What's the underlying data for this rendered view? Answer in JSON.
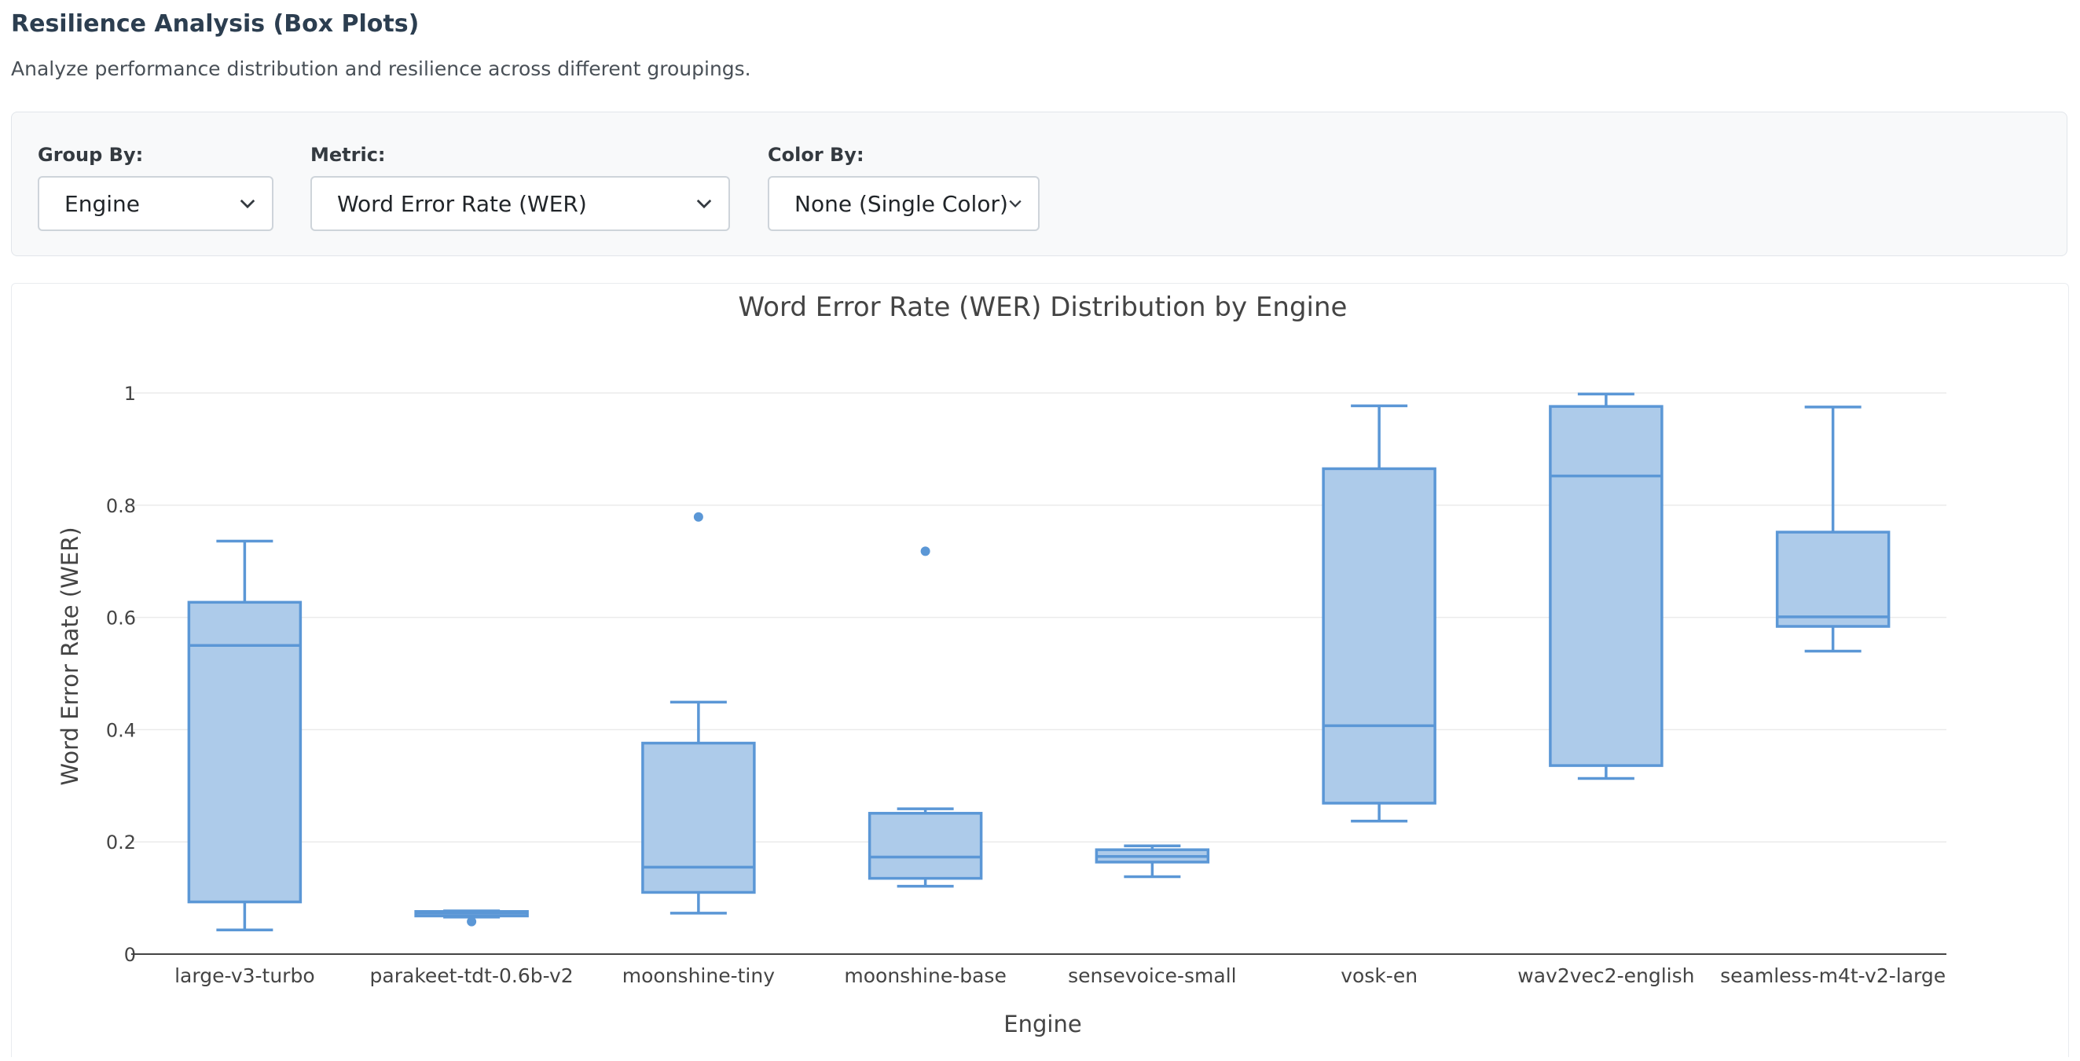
{
  "page": {
    "title": "Resilience Analysis (Box Plots)",
    "description": "Analyze performance distribution and resilience across different groupings."
  },
  "controls": {
    "group_by": {
      "label": "Group By:",
      "value": "Engine"
    },
    "metric": {
      "label": "Metric:",
      "value": "Word Error Rate (WER)"
    },
    "color_by": {
      "label": "Color By:",
      "value": "None (Single Color)"
    }
  },
  "colors": {
    "box_fill": "#adcbea",
    "box_stroke": "#5b97d6",
    "grid": "#ebebeb",
    "axis": "#444444",
    "text": "#444444"
  },
  "chart_data": {
    "type": "box",
    "title": "Word Error Rate (WER) Distribution by Engine",
    "xlabel": "Engine",
    "ylabel": "Word Error Rate (WER)",
    "ylim": [
      0,
      1.05
    ],
    "yticks": [
      0,
      0.2,
      0.4,
      0.6,
      0.8,
      1
    ],
    "ytick_labels": [
      "0",
      "0.2",
      "0.4",
      "0.6",
      "0.8",
      "1"
    ],
    "grid": true,
    "categories": [
      "large-v3-turbo",
      "parakeet-tdt-0.6b-v2",
      "moonshine-tiny",
      "moonshine-base",
      "sensevoice-small",
      "vosk-en",
      "wav2vec2-english",
      "seamless-m4t-v2-large"
    ],
    "boxes": [
      {
        "name": "large-v3-turbo",
        "min": 0.043,
        "q1": 0.093,
        "median": 0.55,
        "q3": 0.627,
        "max": 0.736,
        "outliers": []
      },
      {
        "name": "parakeet-tdt-0.6b-v2",
        "min": 0.066,
        "q1": 0.068,
        "median": 0.073,
        "q3": 0.076,
        "max": 0.077,
        "outliers": [
          0.058
        ]
      },
      {
        "name": "moonshine-tiny",
        "min": 0.073,
        "q1": 0.11,
        "median": 0.155,
        "q3": 0.376,
        "max": 0.449,
        "outliers": [
          0.779
        ]
      },
      {
        "name": "moonshine-base",
        "min": 0.121,
        "q1": 0.135,
        "median": 0.173,
        "q3": 0.251,
        "max": 0.259,
        "outliers": [
          0.718
        ]
      },
      {
        "name": "sensevoice-small",
        "min": 0.138,
        "q1": 0.164,
        "median": 0.174,
        "q3": 0.186,
        "max": 0.193,
        "outliers": []
      },
      {
        "name": "vosk-en",
        "min": 0.237,
        "q1": 0.269,
        "median": 0.407,
        "q3": 0.865,
        "max": 0.977,
        "outliers": []
      },
      {
        "name": "wav2vec2-english",
        "min": 0.313,
        "q1": 0.336,
        "median": 0.852,
        "q3": 0.976,
        "max": 0.998,
        "outliers": []
      },
      {
        "name": "seamless-m4t-v2-large",
        "min": 0.54,
        "q1": 0.584,
        "median": 0.601,
        "q3": 0.752,
        "max": 0.975,
        "outliers": []
      }
    ]
  }
}
